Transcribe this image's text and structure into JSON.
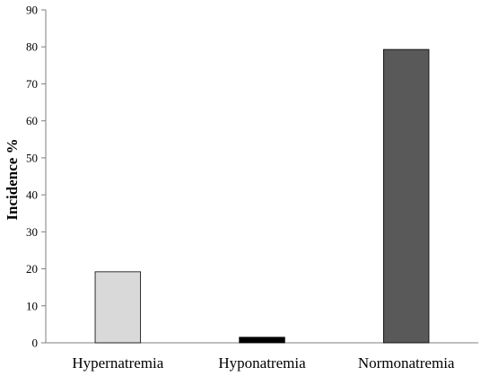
{
  "chart_data": {
    "type": "bar",
    "title": "",
    "xlabel": "",
    "ylabel": "Incidence %",
    "ylim": [
      0,
      90
    ],
    "yticks": [
      0,
      10,
      20,
      30,
      40,
      50,
      60,
      70,
      80,
      90
    ],
    "grid": false,
    "legend": "none",
    "categories": [
      "Hypernatremia",
      "Hyponatremia",
      "Normonatremia"
    ],
    "values": [
      19.2,
      1.5,
      79.3
    ],
    "colors": [
      "#d9d9d9",
      "#000000",
      "#595959"
    ]
  }
}
